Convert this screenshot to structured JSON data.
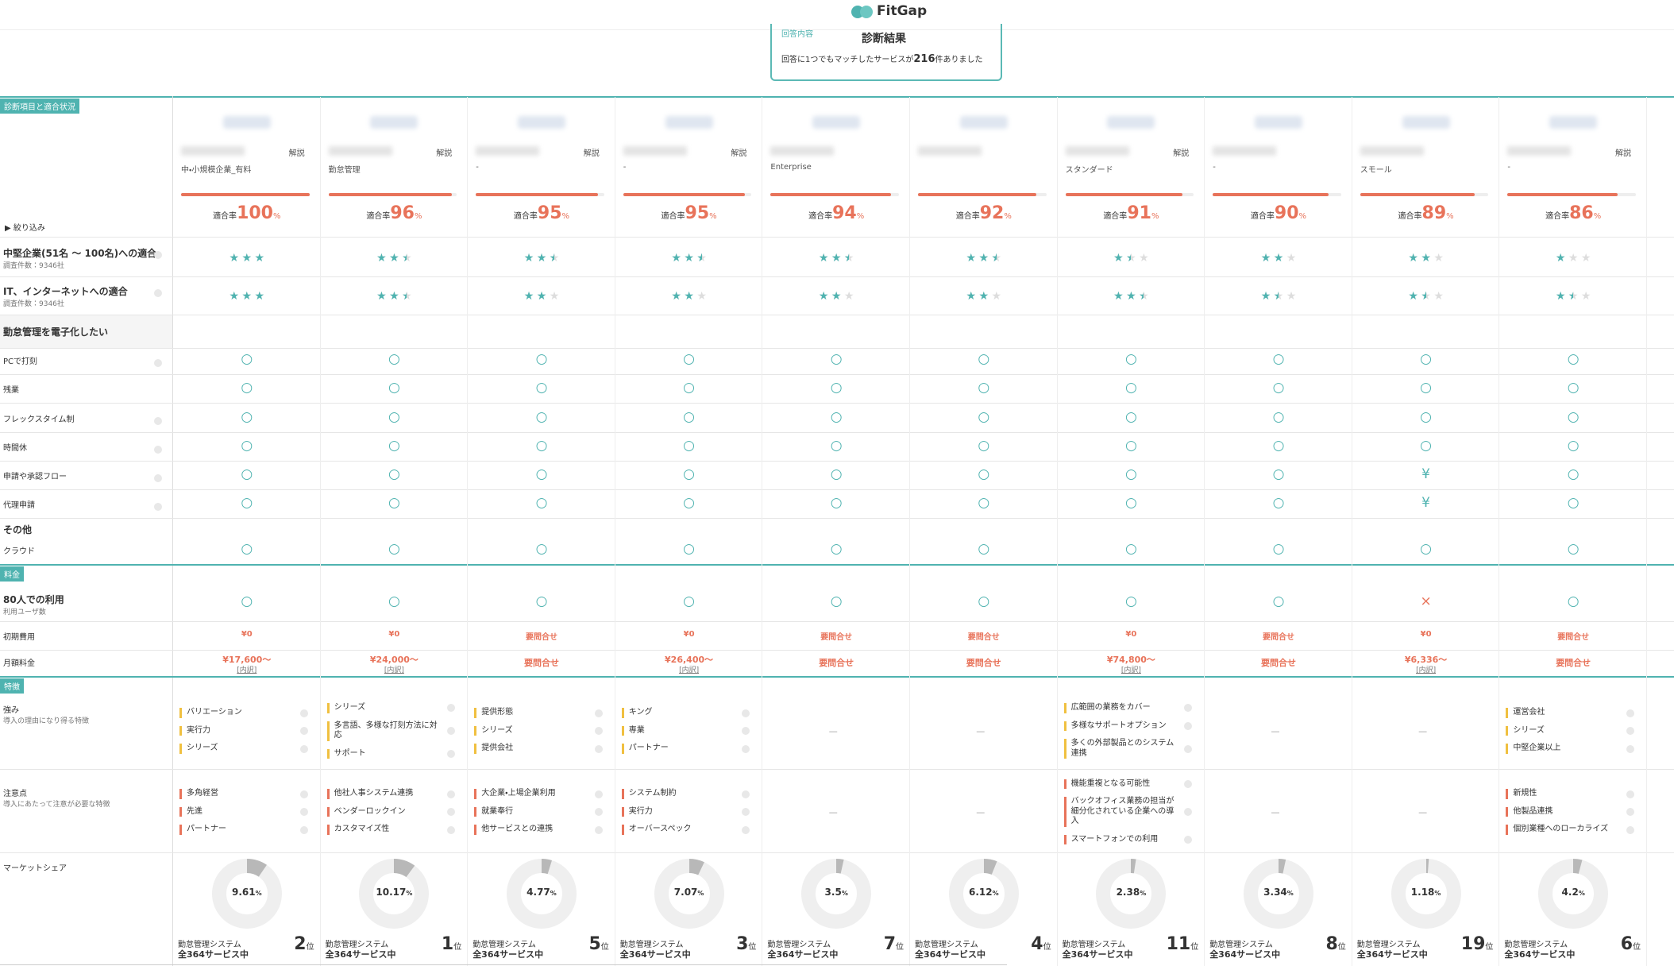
{
  "header": {
    "logo": "FitGap",
    "answer_label": "回答内容",
    "result_title": "診断結果",
    "result_pre": "回答に1つでもマッチしたサービスが",
    "result_count": "216",
    "result_post": "件ありました"
  },
  "labels": {
    "section_fit": "診断項目と適合状況",
    "filter": "絞り込み",
    "section_price": "料金",
    "section_feature": "特徴",
    "explain": "解説",
    "fit_prefix": "適合率",
    "fit_suffix": "%",
    "none": "—",
    "share_category": "勤怠管理システム",
    "share_total": "全364サービス中",
    "rank_suffix": "位",
    "share_suffix": "%"
  },
  "criteria": [
    {
      "label": "中堅企業(51名 〜 100名)への適合",
      "sub": "調査件数：9346社"
    },
    {
      "label": "IT、インターネットへの適合",
      "sub": "調査件数：9346社"
    }
  ],
  "group": {
    "title": "勤怠管理を電子化したい",
    "items": [
      "PCで打刻",
      "残業",
      "フレックスタイム制",
      "時間休",
      "申請や承認フロー",
      "代理申請"
    ]
  },
  "other": {
    "title": "その他",
    "items": [
      "クラウド"
    ]
  },
  "pricing_rows": [
    {
      "label": "80人での利用",
      "sub": "利用ユーザ数"
    },
    {
      "label": "初期費用"
    },
    {
      "label": "月額料金"
    }
  ],
  "feature_rows": [
    {
      "label": "強み",
      "sub": "導入の理由になり得る特徴"
    },
    {
      "label": "注意点",
      "sub": "導入にあたって注意が必要な特徴"
    },
    {
      "label": "マーケットシェア"
    }
  ],
  "products": [
    {
      "plan": "中・小規模企業_有料",
      "explain": true,
      "fit": "100",
      "stars": [
        3,
        3
      ],
      "checks": [
        "○",
        "○",
        "○",
        "○",
        "○",
        "○",
        "○"
      ],
      "users80": "○",
      "initial": "¥0",
      "monthly": "¥17,600〜",
      "monthly_note": "[内訳]",
      "strengths": [
        "バリエーション",
        "実行力",
        "シリーズ"
      ],
      "cautions": [
        "多角経営",
        "先進",
        "パートナー"
      ],
      "share": "9.61",
      "rank": "2"
    },
    {
      "plan": "勤怠管理",
      "explain": true,
      "fit": "96",
      "stars": [
        2.5,
        2.5
      ],
      "checks": [
        "○",
        "○",
        "○",
        "○",
        "○",
        "○",
        "○"
      ],
      "users80": "○",
      "initial": "¥0",
      "monthly": "¥24,000〜",
      "monthly_note": "[内訳]",
      "strengths": [
        "シリーズ",
        "多言語、多様な打刻方法に対応",
        "サポート"
      ],
      "cautions": [
        "他社人事システム連携",
        "ベンダーロックイン",
        "カスタマイズ性"
      ],
      "share": "10.17",
      "rank": "1"
    },
    {
      "plan": "-",
      "explain": true,
      "fit": "95",
      "stars": [
        2.5,
        2
      ],
      "checks": [
        "○",
        "○",
        "○",
        "○",
        "○",
        "○",
        "○"
      ],
      "users80": "○",
      "initial": "要問合せ",
      "monthly": "要問合せ",
      "strengths": [
        "提供形態",
        "シリーズ",
        "提供会社"
      ],
      "cautions": [
        "大企業・上場企業利用",
        "就業奉行",
        "他サービスとの連携"
      ],
      "share": "4.77",
      "rank": "5"
    },
    {
      "plan": "-",
      "explain": true,
      "fit": "95",
      "stars": [
        2.5,
        2
      ],
      "checks": [
        "○",
        "○",
        "○",
        "○",
        "○",
        "○",
        "○"
      ],
      "users80": "○",
      "initial": "¥0",
      "monthly": "¥26,400〜",
      "monthly_note": "[内訳]",
      "strengths": [
        "キング",
        "専業",
        "パートナー"
      ],
      "cautions": [
        "システム制約",
        "実行力",
        "オーバースペック"
      ],
      "share": "7.07",
      "rank": "3"
    },
    {
      "plan": "Enterprise",
      "explain": false,
      "fit": "94",
      "stars": [
        2.5,
        2
      ],
      "checks": [
        "○",
        "○",
        "○",
        "○",
        "○",
        "○",
        "○"
      ],
      "users80": "○",
      "initial": "要問合せ",
      "monthly": "要問合せ",
      "strengths": [],
      "cautions": [],
      "share": "3.5",
      "rank": "7"
    },
    {
      "explain": false,
      "fit": "92",
      "stars": [
        2.5,
        2
      ],
      "checks": [
        "○",
        "○",
        "○",
        "○",
        "○",
        "○",
        "○"
      ],
      "users80": "○",
      "initial": "要問合せ",
      "monthly": "要問合せ",
      "strengths": [],
      "cautions": [],
      "share": "6.12",
      "rank": "4"
    },
    {
      "plan": "スタンダード",
      "explain": true,
      "fit": "91",
      "stars": [
        1.5,
        2.5
      ],
      "checks": [
        "○",
        "○",
        "○",
        "○",
        "○",
        "○",
        "○"
      ],
      "users80": "○",
      "initial": "¥0",
      "monthly": "¥74,800〜",
      "monthly_note": "[内訳]",
      "strengths": [
        "広範囲の業務をカバー",
        "多様なサポートオプション",
        "多くの外部製品とのシステム連携"
      ],
      "cautions": [
        "機能重複となる可能性",
        "バックオフィス業務の担当が細分化されている企業への導入",
        "スマートフォンでの利用"
      ],
      "share": "2.38",
      "rank": "11"
    },
    {
      "plan": "-",
      "explain": false,
      "fit": "90",
      "stars": [
        2,
        1.5
      ],
      "checks": [
        "○",
        "○",
        "○",
        "○",
        "○",
        "○",
        "○"
      ],
      "users80": "○",
      "initial": "要問合せ",
      "monthly": "要問合せ",
      "strengths": [],
      "cautions": [],
      "share": "3.34",
      "rank": "8"
    },
    {
      "plan": "スモール",
      "explain": false,
      "fit": "89",
      "stars": [
        2,
        1.5
      ],
      "checks": [
        "○",
        "○",
        "○",
        "○",
        "¥",
        "¥",
        "○"
      ],
      "users80": "×",
      "initial": "¥0",
      "monthly": "¥6,336〜",
      "monthly_note": "[内訳]",
      "strengths": [],
      "cautions": [],
      "share": "1.18",
      "rank": "19"
    },
    {
      "plan": "-",
      "explain": true,
      "fit": "86",
      "stars": [
        1,
        1.5
      ],
      "checks": [
        "○",
        "○",
        "○",
        "○",
        "○",
        "○",
        "○"
      ],
      "users80": "○",
      "initial": "要問合せ",
      "monthly": "要問合せ",
      "strengths": [
        "運営会社",
        "シリーズ",
        "中堅企業以上"
      ],
      "cautions": [
        "新規性",
        "他製品連携",
        "個別業種へのローカライズ"
      ],
      "share": "4.2",
      "rank": "6"
    }
  ]
}
